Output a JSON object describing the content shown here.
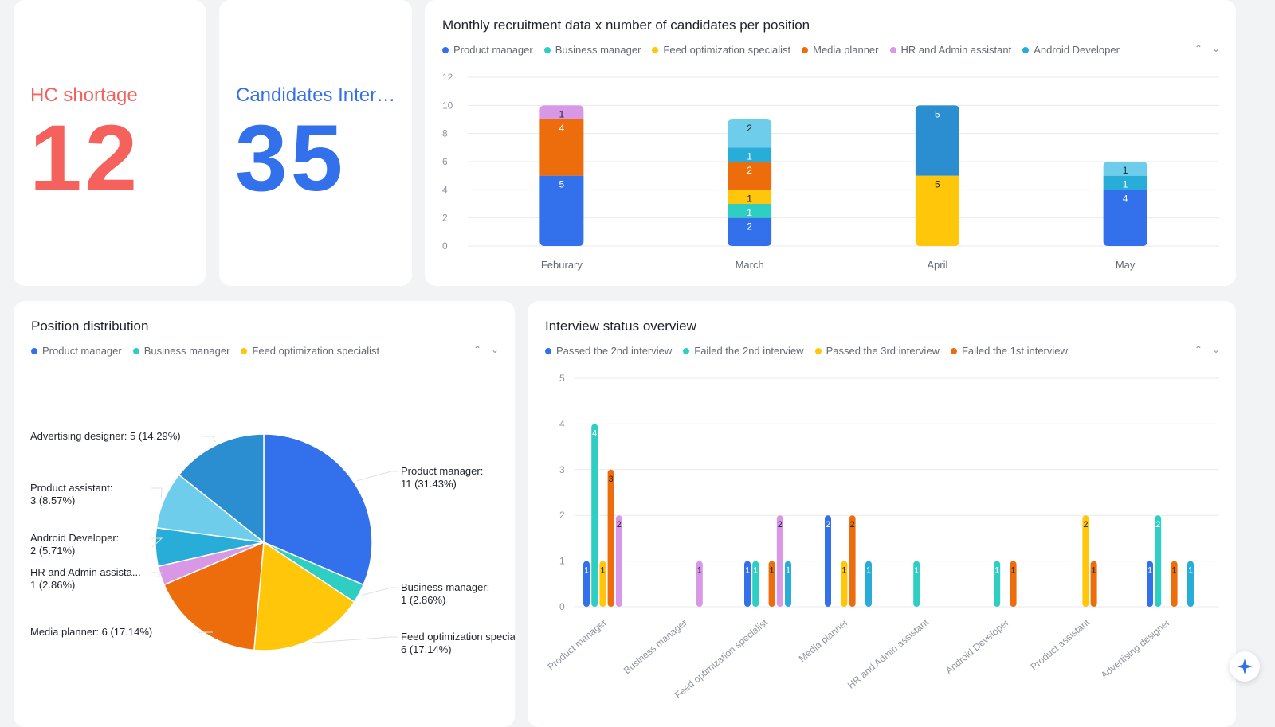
{
  "kpis": [
    {
      "label": "HC shortage",
      "value": "12",
      "color": "#f5625d"
    },
    {
      "label": "Candidates Interviewed",
      "value": "35",
      "color": "#3370eb"
    }
  ],
  "colors": {
    "Product manager": "#3370eb",
    "Business manager": "#2ecec3",
    "Feed optimization specialist": "#ffc60a",
    "Media planner": "#ed6d0c",
    "HR and Admin assistant": "#d898e6",
    "Android Developer": "#28acd8",
    "Product assistant": "#6dcdeb",
    "Advertising designer": "#2b8ed0",
    "Passed the 2nd interview": "#3370eb",
    "Failed the 2nd interview": "#2ecec3",
    "Passed the 3rd interview": "#ffc60a",
    "Failed the 1st interview": "#ed6d0c",
    "Extra purple": "#d898e6",
    "Extra cyan": "#28acd8"
  },
  "icons": {
    "pager_up": "chevron-up-icon",
    "pager_down": "chevron-down-icon",
    "ai": "sparkle-icon"
  },
  "chart_data": [
    {
      "type": "bar",
      "stacked": true,
      "title": "Monthly recruitment data x number of candidates per position",
      "legend": [
        "Product manager",
        "Business manager",
        "Feed optimization specialist",
        "Media planner",
        "HR and Admin assistant",
        "Android Developer"
      ],
      "legend_position": "top-left",
      "categories": [
        "Feburary",
        "March",
        "April",
        "May"
      ],
      "ylim": [
        0,
        12
      ],
      "yticks": [
        0,
        2,
        4,
        6,
        8,
        10,
        12
      ],
      "grid": true,
      "stacks": [
        [
          {
            "series": "Product manager",
            "value": 5
          },
          {
            "series": "Media planner",
            "value": 4
          },
          {
            "series": "HR and Admin assistant",
            "value": 1
          }
        ],
        [
          {
            "series": "Product manager",
            "value": 2
          },
          {
            "series": "Business manager",
            "value": 1
          },
          {
            "series": "Feed optimization specialist",
            "value": 1
          },
          {
            "series": "Media planner",
            "value": 2
          },
          {
            "series": "Android Developer",
            "value": 1
          },
          {
            "series": "Product assistant",
            "value": 2
          }
        ],
        [
          {
            "series": "Feed optimization specialist",
            "value": 5
          },
          {
            "series": "Advertising designer",
            "value": 5
          }
        ],
        [
          {
            "series": "Product manager",
            "value": 4
          },
          {
            "series": "Android Developer",
            "value": 1
          },
          {
            "series": "Product assistant",
            "value": 1
          }
        ]
      ]
    },
    {
      "type": "pie",
      "title": "Position distribution",
      "legend": [
        "Product manager",
        "Business manager",
        "Feed optimization specialist"
      ],
      "legend_position": "top-left",
      "slices": [
        {
          "name": "Product manager",
          "value": 11,
          "label": "Product manager:",
          "sub": "11 (31.43%)",
          "side": "right"
        },
        {
          "name": "Business manager",
          "value": 1,
          "label": "Business manager:",
          "sub": "1 (2.86%)",
          "side": "right"
        },
        {
          "name": "Feed optimization specialist",
          "value": 6,
          "label": "Feed optimization specialist:",
          "sub": "6 (17.14%)",
          "side": "right"
        },
        {
          "name": "Media planner",
          "value": 6,
          "label": "Media planner: 6 (17.14%)",
          "sub": "",
          "side": "left"
        },
        {
          "name": "HR and Admin assistant",
          "value": 1,
          "label": "HR and Admin assista...",
          "sub": "1 (2.86%)",
          "side": "left"
        },
        {
          "name": "Android Developer",
          "value": 2,
          "label": "Android Developer:",
          "sub": "2 (5.71%)",
          "side": "left"
        },
        {
          "name": "Product assistant",
          "value": 3,
          "label": "Product assistant:",
          "sub": "3 (8.57%)",
          "side": "left"
        },
        {
          "name": "Advertising designer",
          "value": 5,
          "label": "Advertising designer: 5 (14.29%)",
          "sub": "",
          "side": "left"
        }
      ]
    },
    {
      "type": "bar",
      "grouped": true,
      "title": "Interview status overview",
      "legend": [
        "Passed the 2nd interview",
        "Failed the 2nd interview",
        "Passed the 3rd interview",
        "Failed the 1st interview"
      ],
      "legend_position": "top-left",
      "categories": [
        "Product manager",
        "Business manager",
        "Feed optimization specialist",
        "Media planner",
        "HR and Admin assistant",
        "Android Developer",
        "Product assistant",
        "Advertising designer"
      ],
      "ylim": [
        0,
        5
      ],
      "yticks": [
        0,
        1,
        2,
        3,
        4,
        5
      ],
      "grid": true,
      "series": [
        {
          "color_key": "Passed the 2nd interview",
          "values": [
            1,
            null,
            1,
            2,
            null,
            null,
            null,
            1
          ]
        },
        {
          "color_key": "Failed the 2nd interview",
          "values": [
            4,
            null,
            1,
            null,
            1,
            1,
            null,
            2
          ]
        },
        {
          "color_key": "Passed the 3rd interview",
          "values": [
            1,
            null,
            null,
            1,
            null,
            null,
            2,
            null
          ]
        },
        {
          "color_key": "Failed the 1st interview",
          "values": [
            3,
            null,
            1,
            2,
            null,
            1,
            1,
            1
          ]
        },
        {
          "color_key": "Extra purple",
          "values": [
            2,
            1,
            2,
            null,
            null,
            null,
            null,
            null
          ]
        },
        {
          "color_key": "Extra cyan",
          "values": [
            null,
            null,
            1,
            1,
            null,
            null,
            null,
            1
          ]
        }
      ]
    }
  ]
}
